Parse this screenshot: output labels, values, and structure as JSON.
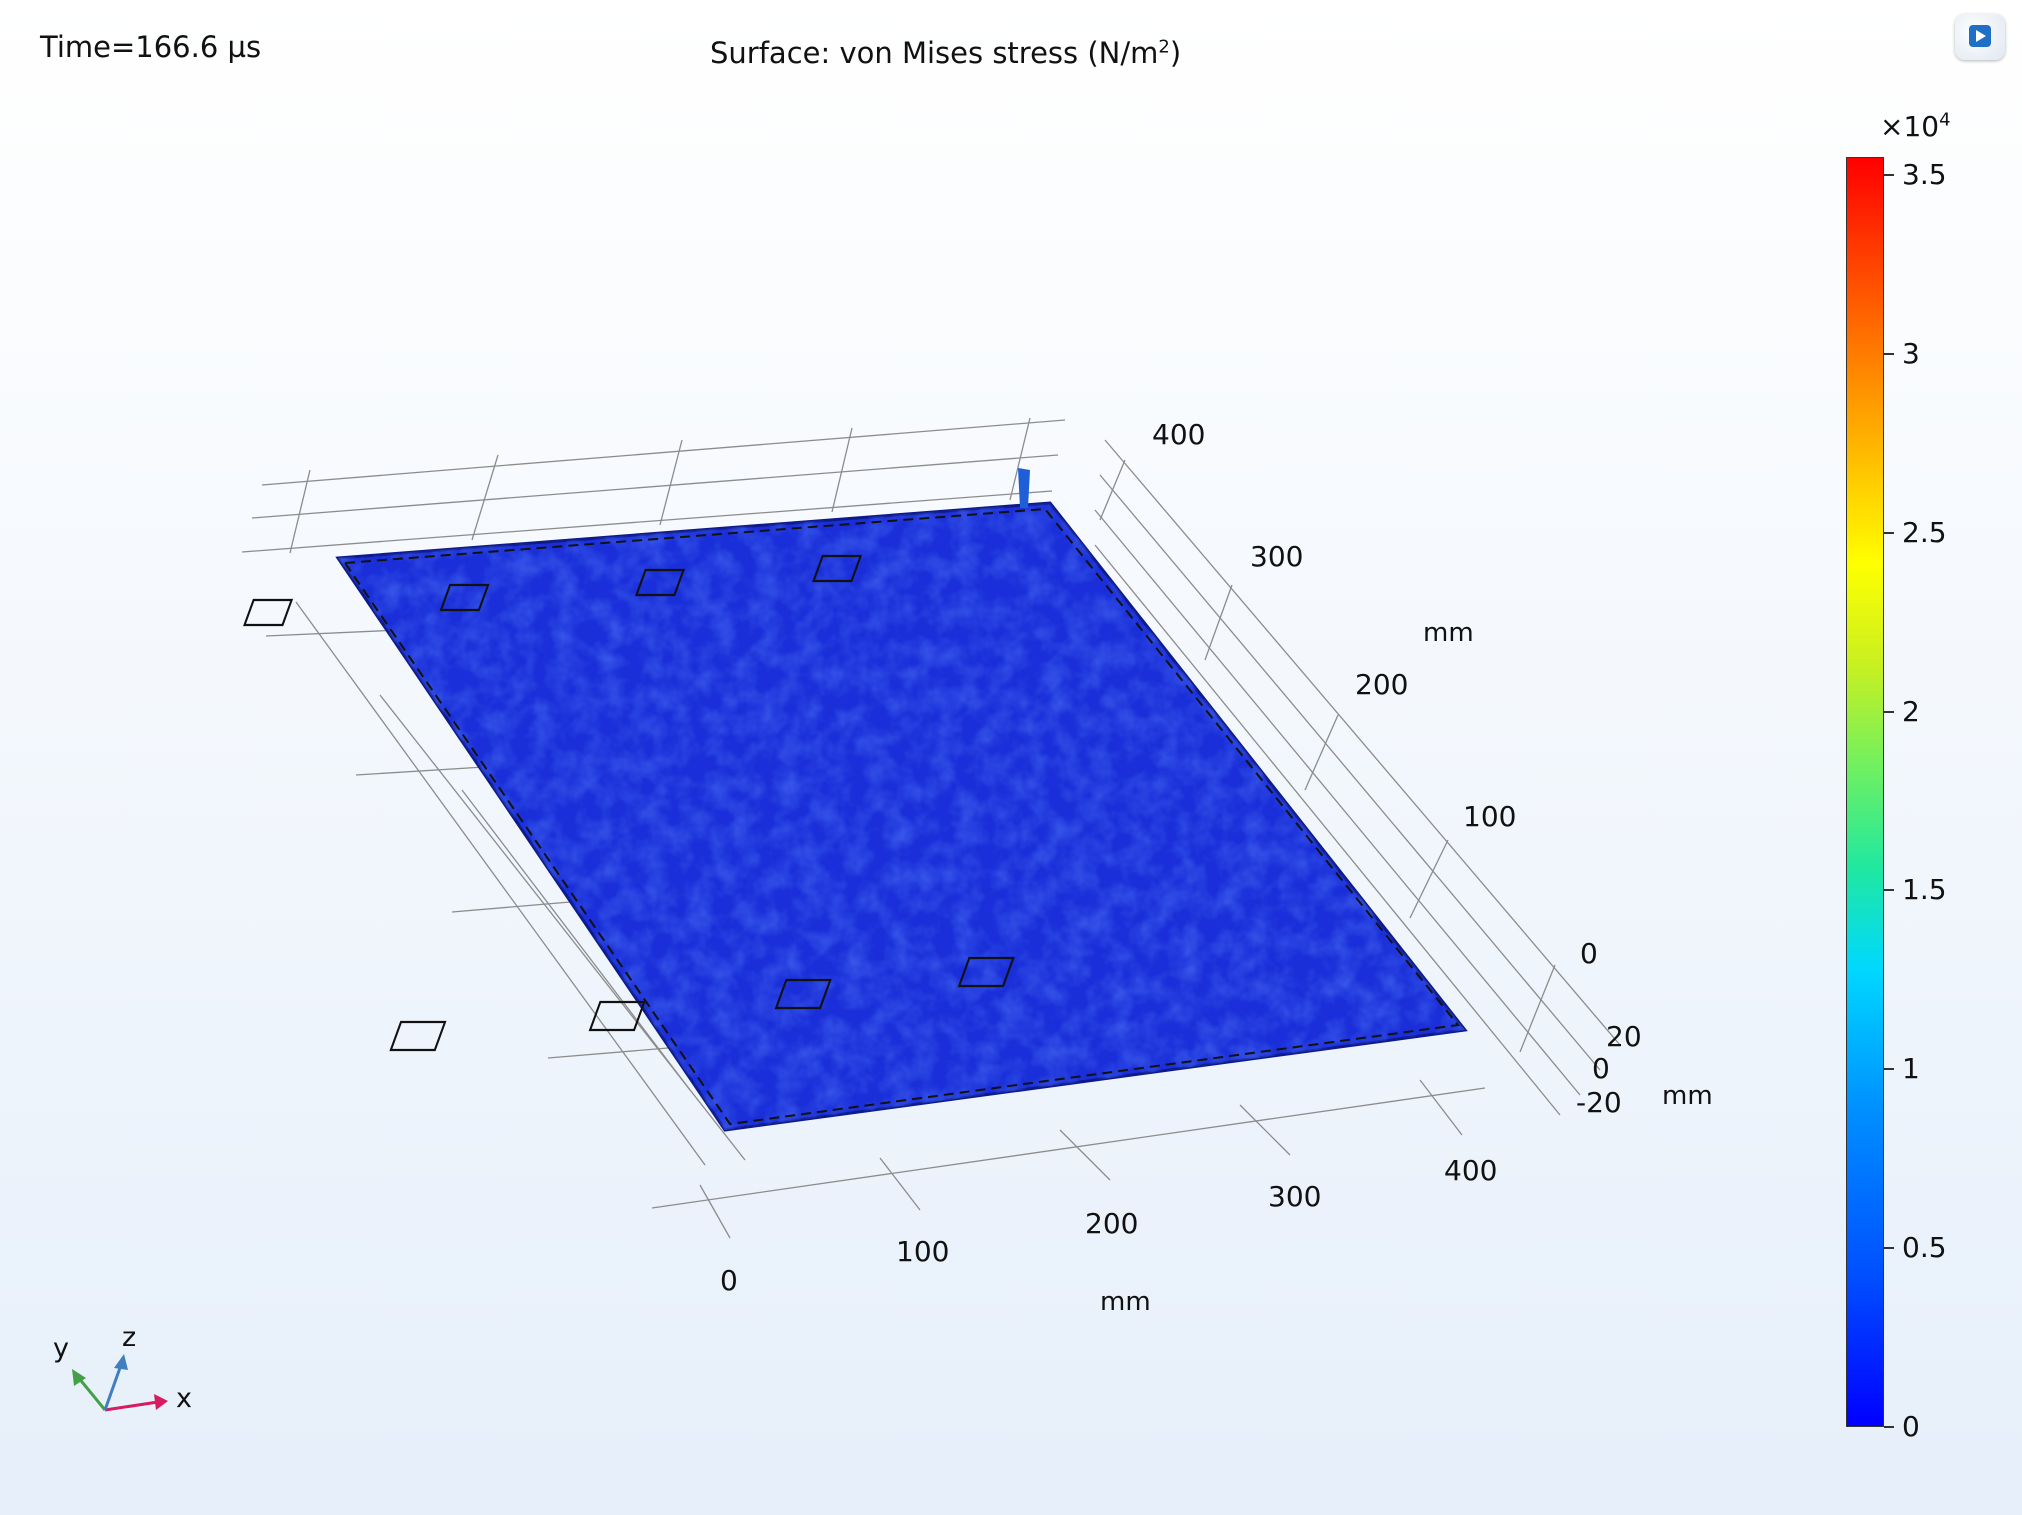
{
  "header": {
    "time_label": "Time=166.6 µs",
    "title_prefix": "Surface: von Mises stress (N/m",
    "title_sup": "2",
    "title_suffix": ")"
  },
  "colorbar": {
    "multiplier_base": "×10",
    "multiplier_exp": "4",
    "tick_labels": [
      "3.5",
      "3",
      "2.5",
      "2",
      "1.5",
      "1",
      "0.5",
      "0"
    ],
    "tick_values": [
      3.5,
      3,
      2.5,
      2,
      1.5,
      1,
      0.5,
      0
    ],
    "range": [
      0,
      3.55
    ],
    "colormap": "rainbow",
    "color_low": "#0000ff",
    "color_high": "#ff0000"
  },
  "axes": {
    "x_ticks": [
      "0",
      "100",
      "200",
      "300",
      "400"
    ],
    "x_unit": "mm",
    "y_ticks": [
      "0",
      "100",
      "200",
      "300",
      "400"
    ],
    "y_unit": "mm",
    "z_ticks": [
      "20",
      "0",
      "-20"
    ],
    "z_unit": "mm"
  },
  "triad": {
    "x": "x",
    "y": "y",
    "z": "z"
  },
  "colors": {
    "surface": "#1a2fd9",
    "x_axis": "#d81b60",
    "y_axis": "#43a047",
    "z_axis": "#3f7fbf"
  },
  "toolbar": {
    "logo_icon": "app-logo-icon"
  }
}
